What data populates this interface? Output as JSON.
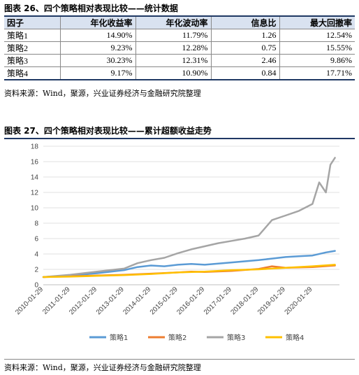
{
  "table_section": {
    "title": "图表 26、四个策略相对表现比较——统计数据",
    "headers": [
      "因子",
      "年化收益率",
      "年化波动率",
      "信息比",
      "最大回撤率"
    ],
    "rows": [
      [
        "策略1",
        "14.90%",
        "11.79%",
        "1.26",
        "12.54%"
      ],
      [
        "策略2",
        "9.23%",
        "12.28%",
        "0.75",
        "15.55%"
      ],
      [
        "策略3",
        "30.23%",
        "12.31%",
        "2.46",
        "9.86%"
      ],
      [
        "策略4",
        "9.17%",
        "10.90%",
        "0.84",
        "17.71%"
      ]
    ],
    "header_bg": "#d9e2f0",
    "source": "资料来源：Wind，聚源，兴业证券经济与金融研究院整理"
  },
  "chart_section": {
    "title": "图表 27、四个策略相对表现比较——累计超额收益走势",
    "source": "资料来源：Wind，聚源，兴业证券经济与金融研究院整理"
  },
  "chart_data": {
    "type": "line",
    "title": "",
    "xlabel": "",
    "ylabel": "",
    "ylim": [
      0,
      18
    ],
    "yticks": [
      0,
      2,
      4,
      6,
      8,
      10,
      12,
      14,
      16,
      18
    ],
    "xlim": [
      "2010-01-29",
      "2021-01-29"
    ],
    "xticks": [
      "2010-01-29",
      "2011-01-29",
      "2012-01-29",
      "2013-01-29",
      "2014-01-29",
      "2015-01-29",
      "2016-01-29",
      "2017-01-29",
      "2018-01-29",
      "2019-01-29",
      "2020-01-29"
    ],
    "grid": true,
    "legend_position": "bottom",
    "series": [
      {
        "name": "策略1",
        "color": "#5b9bd5",
        "x": [
          "2010-01-29",
          "2011-01-29",
          "2012-01-29",
          "2013-01-29",
          "2013-07-29",
          "2014-01-29",
          "2014-07-29",
          "2015-01-29",
          "2015-07-29",
          "2016-01-29",
          "2017-01-29",
          "2018-01-29",
          "2018-07-29",
          "2019-01-29",
          "2019-07-29",
          "2020-01-29",
          "2020-07-29",
          "2020-11-29"
        ],
        "values": [
          1.0,
          1.2,
          1.5,
          1.9,
          2.3,
          2.5,
          2.4,
          2.6,
          2.7,
          2.6,
          2.9,
          3.2,
          3.4,
          3.6,
          3.7,
          3.8,
          4.2,
          4.4
        ]
      },
      {
        "name": "策略2",
        "color": "#ed7d31",
        "x": [
          "2010-01-29",
          "2011-01-29",
          "2012-01-29",
          "2013-01-29",
          "2014-01-29",
          "2015-01-29",
          "2015-07-29",
          "2016-01-29",
          "2017-01-29",
          "2018-01-29",
          "2018-07-29",
          "2019-01-29",
          "2020-01-29",
          "2020-11-29"
        ],
        "values": [
          1.0,
          1.1,
          1.2,
          1.3,
          1.45,
          1.6,
          1.7,
          1.65,
          1.8,
          2.05,
          2.4,
          2.2,
          2.3,
          2.5
        ]
      },
      {
        "name": "策略3",
        "color": "#a5a5a5",
        "x": [
          "2010-01-29",
          "2011-01-29",
          "2012-01-29",
          "2013-01-29",
          "2013-07-29",
          "2014-01-29",
          "2014-07-29",
          "2015-01-29",
          "2015-07-29",
          "2016-01-29",
          "2016-07-29",
          "2017-01-29",
          "2017-07-29",
          "2018-01-29",
          "2018-07-29",
          "2019-01-29",
          "2019-07-29",
          "2020-01-29",
          "2020-04-29",
          "2020-07-29",
          "2020-09-29",
          "2020-11-29"
        ],
        "values": [
          1.0,
          1.3,
          1.7,
          2.1,
          2.8,
          3.2,
          3.5,
          4.1,
          4.6,
          5.0,
          5.4,
          5.7,
          6.0,
          6.4,
          8.4,
          9.0,
          9.6,
          10.5,
          13.3,
          12.0,
          15.6,
          16.5
        ]
      },
      {
        "name": "策略4",
        "color": "#ffc000",
        "x": [
          "2010-01-29",
          "2011-01-29",
          "2012-01-29",
          "2013-01-29",
          "2014-01-29",
          "2015-01-29",
          "2016-01-29",
          "2017-01-29",
          "2018-01-29",
          "2019-01-29",
          "2020-01-29",
          "2020-11-29"
        ],
        "values": [
          1.0,
          1.05,
          1.15,
          1.25,
          1.4,
          1.6,
          1.7,
          1.9,
          2.0,
          2.2,
          2.4,
          2.6
        ]
      }
    ]
  }
}
